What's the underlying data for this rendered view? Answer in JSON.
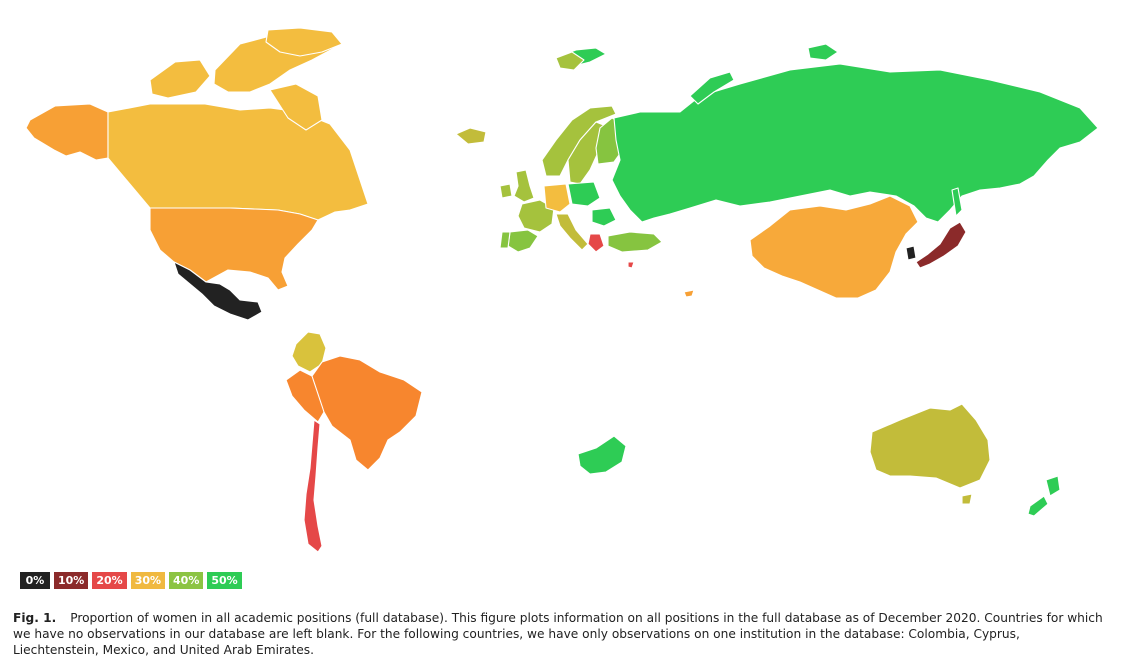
{
  "legend": [
    {
      "label": "0%",
      "color": "#222222"
    },
    {
      "label": "10%",
      "color": "#8b2a2a"
    },
    {
      "label": "20%",
      "color": "#e54848"
    },
    {
      "label": "30%",
      "color": "#f0b940"
    },
    {
      "label": "40%",
      "color": "#8cc443"
    },
    {
      "label": "50%",
      "color": "#2ecc55"
    }
  ],
  "countries": [
    {
      "name": "Alaska (United States)",
      "color": "#f7a035"
    },
    {
      "name": "Canada",
      "color": "#f3bd3f"
    },
    {
      "name": "United States",
      "color": "#f7a035"
    },
    {
      "name": "Mexico",
      "color": "#222222"
    },
    {
      "name": "Colombia",
      "color": "#d9c23c"
    },
    {
      "name": "Peru",
      "color": "#f7862e"
    },
    {
      "name": "Brazil",
      "color": "#f7862e"
    },
    {
      "name": "Chile",
      "color": "#e54848"
    },
    {
      "name": "Greenland",
      "color": "#f3bd3f"
    },
    {
      "name": "Iceland",
      "color": "#c2bc3a"
    },
    {
      "name": "Norway",
      "color": "#a5c23d"
    },
    {
      "name": "Sweden",
      "color": "#a5c23d"
    },
    {
      "name": "Finland",
      "color": "#86c440"
    },
    {
      "name": "United Kingdom",
      "color": "#a5c23d"
    },
    {
      "name": "Ireland",
      "color": "#a5c23d"
    },
    {
      "name": "France",
      "color": "#a5c23d"
    },
    {
      "name": "Spain",
      "color": "#86c440"
    },
    {
      "name": "Portugal",
      "color": "#86c440"
    },
    {
      "name": "Germany",
      "color": "#f3bd3f"
    },
    {
      "name": "Poland",
      "color": "#2ecc55"
    },
    {
      "name": "Italy",
      "color": "#c2bc3a"
    },
    {
      "name": "Greece",
      "color": "#e54848"
    },
    {
      "name": "Romania",
      "color": "#2ecc55"
    },
    {
      "name": "Turkey",
      "color": "#86c440"
    },
    {
      "name": "Russia",
      "color": "#2ecc55"
    },
    {
      "name": "Svalbard (Norway)",
      "color": "#2ecc55"
    },
    {
      "name": "China",
      "color": "#f7a93a"
    },
    {
      "name": "South Korea",
      "color": "#222222"
    },
    {
      "name": "Japan",
      "color": "#8b2a2a"
    },
    {
      "name": "Cyprus",
      "color": "#e54848"
    },
    {
      "name": "United Arab Emirates",
      "color": "#f7a035"
    },
    {
      "name": "South Africa",
      "color": "#2ecc55"
    },
    {
      "name": "Australia",
      "color": "#c2bc3a"
    },
    {
      "name": "New Zealand",
      "color": "#2ecc55"
    }
  ],
  "caption": {
    "label": "Fig. 1.",
    "text": "Proportion of women in all academic positions (full database). This figure plots information on all positions in the full database as of December 2020. Countries for which we have no observations in our database are left blank. For the following countries, we have only observations on one institution in the database: Colombia, Cyprus, Liechtenstein, Mexico, and United Arab Emirates."
  }
}
